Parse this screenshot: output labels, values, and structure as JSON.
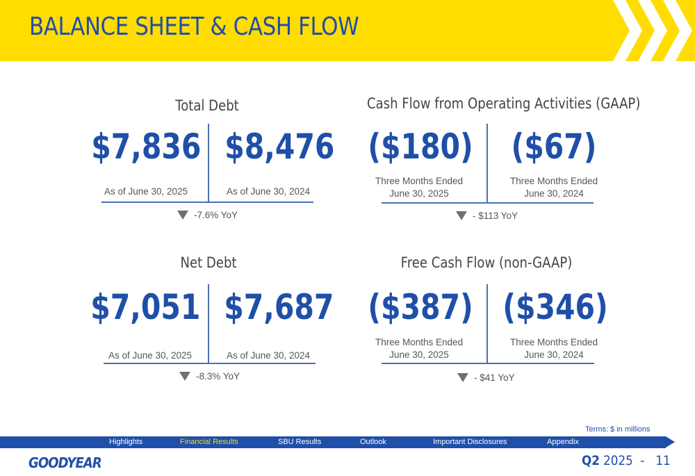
{
  "header": {
    "title": "BALANCE SHEET & CASH FLOW"
  },
  "panels": {
    "total_debt": {
      "title": "Total Debt",
      "left_value": "$7,836",
      "left_caption": "As of June 30, 2025",
      "right_value": "$8,476",
      "right_caption": "As of June 30, 2024",
      "yoy": "-7.6% YoY"
    },
    "cash_flow_ops": {
      "title": "Cash Flow from Operating Activities (GAAP)",
      "left_value": "($180)",
      "left_caption_1": "Three Months Ended",
      "left_caption_2": "June 30, 2025",
      "right_value": "($67)",
      "right_caption_1": "Three Months Ended",
      "right_caption_2": "June 30, 2024",
      "yoy": "- $113 YoY"
    },
    "net_debt": {
      "title": "Net Debt",
      "left_value": "$7,051",
      "left_caption": "As of June 30, 2025",
      "right_value": "$7,687",
      "right_caption": "As of June 30, 2024",
      "yoy": "-8.3% YoY"
    },
    "free_cash_flow": {
      "title": "Free Cash Flow (non-GAAP)",
      "left_value": "($387)",
      "left_caption_1": "Three Months Ended",
      "left_caption_2": "June 30, 2025",
      "right_value": "($346)",
      "right_caption_1": "Three Months Ended",
      "right_caption_2": "June 30, 2024",
      "yoy": "- $41 YoY"
    }
  },
  "terms": "Terms: $ in millions",
  "nav": {
    "items": [
      "Highlights",
      "Financial Results",
      "SBU Results",
      "Outlook",
      "Important Disclosures",
      "Appendix"
    ],
    "active": "Financial Results"
  },
  "footer": {
    "logo": "GOODYEAR",
    "quarter": "Q2",
    "year": "2025",
    "separator": "-",
    "page": "11"
  },
  "colors": {
    "brand_yellow": "#FFDD00",
    "brand_blue": "#1F4FA8",
    "triangle_gray": "#707070"
  },
  "icons": {
    "down_indicator": "down-triangle-icon",
    "header_decoration": "chevron-right-icon"
  }
}
